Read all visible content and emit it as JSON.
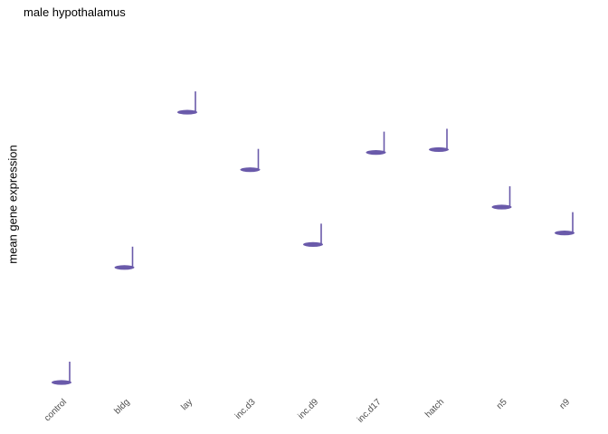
{
  "title": "male hypothalamus",
  "chart_data": {
    "type": "scatter",
    "title": "male hypothalamus",
    "xlabel": "",
    "ylabel": "mean gene expression",
    "categories": [
      "control",
      "bldg",
      "lay",
      "inc.d3",
      "inc.d9",
      "inc.d17",
      "hatch",
      "n5",
      "n9"
    ],
    "values": [
      0.0,
      4.0,
      9.4,
      7.4,
      4.8,
      8.0,
      8.1,
      6.1,
      5.2
    ],
    "ylim": [
      0,
      10
    ],
    "y_tick_labels_shown": false,
    "grid": false,
    "marker": "note-glyph",
    "color": "#6a5aaa"
  }
}
